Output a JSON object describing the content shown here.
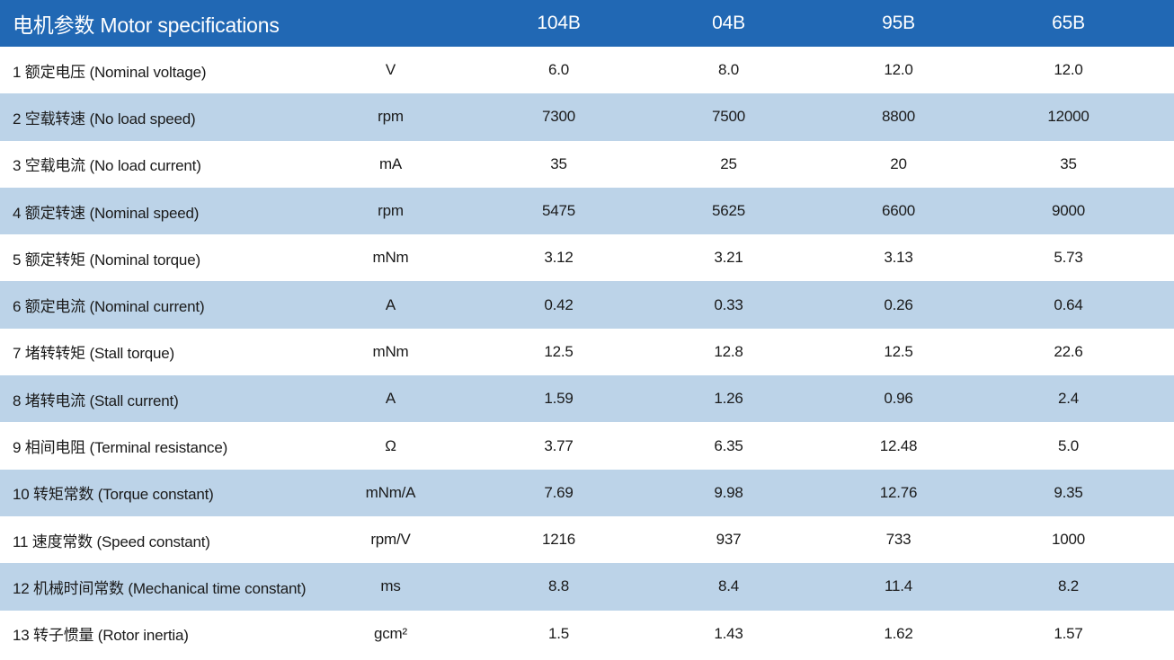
{
  "colors": {
    "header_bg": "#2168B4",
    "stripe_bg": "#BCD3E8",
    "row_bg": "#FFFFFF",
    "header_text": "#FFFFFF",
    "body_text": "#1A1A1A"
  },
  "table": {
    "title": "电机参数 Motor specifications",
    "models": [
      "104B",
      "04B",
      "95B",
      "65B"
    ],
    "rows": [
      {
        "label": "1 额定电压 (Nominal voltage)",
        "unit": "V",
        "values": [
          "6.0",
          "8.0",
          "12.0",
          "12.0"
        ]
      },
      {
        "label": "2 空载转速 (No load speed)",
        "unit": "rpm",
        "values": [
          "7300",
          "7500",
          "8800",
          "12000"
        ]
      },
      {
        "label": "3 空载电流 (No load current)",
        "unit": "mA",
        "values": [
          "35",
          "25",
          "20",
          "35"
        ]
      },
      {
        "label": "4 额定转速 (Nominal speed)",
        "unit": "rpm",
        "values": [
          "5475",
          "5625",
          "6600",
          "9000"
        ]
      },
      {
        "label": "5 额定转矩 (Nominal torque)",
        "unit": "mNm",
        "values": [
          "3.12",
          "3.21",
          "3.13",
          "5.73"
        ]
      },
      {
        "label": "6 额定电流 (Nominal current)",
        "unit": "A",
        "values": [
          "0.42",
          "0.33",
          "0.26",
          "0.64"
        ]
      },
      {
        "label": "7 堵转转矩 (Stall torque)",
        "unit": "mNm",
        "values": [
          "12.5",
          "12.8",
          "12.5",
          "22.6"
        ]
      },
      {
        "label": "8 堵转电流 (Stall current)",
        "unit": "A",
        "values": [
          "1.59",
          "1.26",
          "0.96",
          "2.4"
        ]
      },
      {
        "label": "9 相间电阻 (Terminal resistance)",
        "unit": "Ω",
        "values": [
          "3.77",
          "6.35",
          "12.48",
          "5.0"
        ]
      },
      {
        "label": "10 转矩常数 (Torque constant)",
        "unit": "mNm/A",
        "values": [
          "7.69",
          "9.98",
          "12.76",
          "9.35"
        ]
      },
      {
        "label": "11 速度常数 (Speed constant)",
        "unit": "rpm/V",
        "values": [
          "1216",
          "937",
          "733",
          "1000"
        ]
      },
      {
        "label": "12 机械时间常数 (Mechanical time constant)",
        "unit": "ms",
        "values": [
          "8.8",
          "8.4",
          "11.4",
          "8.2"
        ]
      },
      {
        "label": "13 转子惯量 (Rotor inertia)",
        "unit": "gcm²",
        "values": [
          "1.5",
          "1.43",
          "1.62",
          "1.57"
        ]
      }
    ]
  }
}
